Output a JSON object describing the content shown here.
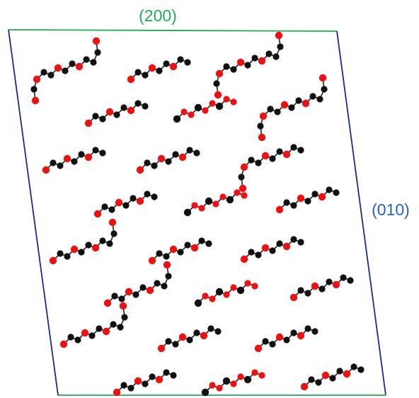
{
  "labels": {
    "top_face": "(200)",
    "right_face": "(010)"
  },
  "colors": {
    "top_edge": "#22aa55",
    "right_edge": "#1c2a8a",
    "left_edge": "#1c2a8a",
    "bottom_edge": "#22aa55",
    "top_label": "#22aa55",
    "right_label": "#2a62b8",
    "oxygen": "#ee1111",
    "carbon": "#111111",
    "bond": "#222222"
  },
  "atom_kinds": [
    "oxygen",
    "carbon"
  ]
}
